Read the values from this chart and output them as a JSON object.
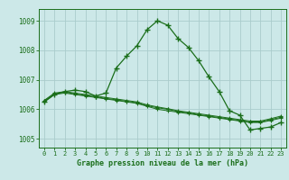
{
  "background_color": "#cce8e8",
  "grid_color": "#aacccc",
  "line_color": "#1a6e1a",
  "marker_color": "#1a6e1a",
  "title": "Graphe pression niveau de la mer (hPa)",
  "xlim": [
    -0.5,
    23.5
  ],
  "ylim": [
    1004.7,
    1009.4
  ],
  "yticks": [
    1005,
    1006,
    1007,
    1008,
    1009
  ],
  "xticks": [
    0,
    1,
    2,
    3,
    4,
    5,
    6,
    7,
    8,
    9,
    10,
    11,
    12,
    13,
    14,
    15,
    16,
    17,
    18,
    19,
    20,
    21,
    22,
    23
  ],
  "series": [
    [
      1006.25,
      1006.5,
      1006.55,
      1006.5,
      1006.45,
      1006.4,
      1006.35,
      1006.3,
      1006.25,
      1006.2,
      1006.1,
      1006.0,
      1005.95,
      1005.9,
      1005.85,
      1005.8,
      1005.75,
      1005.7,
      1005.65,
      1005.6,
      1005.55,
      1005.55,
      1005.62,
      1005.7
    ],
    [
      1006.28,
      1006.52,
      1006.58,
      1006.52,
      1006.47,
      1006.42,
      1006.37,
      1006.32,
      1006.27,
      1006.22,
      1006.12,
      1006.05,
      1006.0,
      1005.92,
      1005.88,
      1005.82,
      1005.77,
      1005.72,
      1005.67,
      1005.62,
      1005.57,
      1005.57,
      1005.65,
      1005.73
    ],
    [
      1006.3,
      1006.55,
      1006.6,
      1006.55,
      1006.5,
      1006.45,
      1006.4,
      1006.35,
      1006.3,
      1006.25,
      1006.15,
      1006.08,
      1006.02,
      1005.95,
      1005.9,
      1005.85,
      1005.8,
      1005.75,
      1005.7,
      1005.65,
      1005.6,
      1005.6,
      1005.68,
      1005.77
    ],
    [
      1006.25,
      1006.5,
      1006.6,
      1006.65,
      1006.6,
      1006.45,
      1006.55,
      1007.4,
      1007.8,
      1008.15,
      1008.7,
      1009.0,
      1008.85,
      1008.4,
      1008.1,
      1007.65,
      1007.1,
      1006.6,
      1005.95,
      1005.8,
      1005.3,
      1005.35,
      1005.4,
      1005.55
    ]
  ],
  "x": [
    0,
    1,
    2,
    3,
    4,
    5,
    6,
    7,
    8,
    9,
    10,
    11,
    12,
    13,
    14,
    15,
    16,
    17,
    18,
    19,
    20,
    21,
    22,
    23
  ]
}
